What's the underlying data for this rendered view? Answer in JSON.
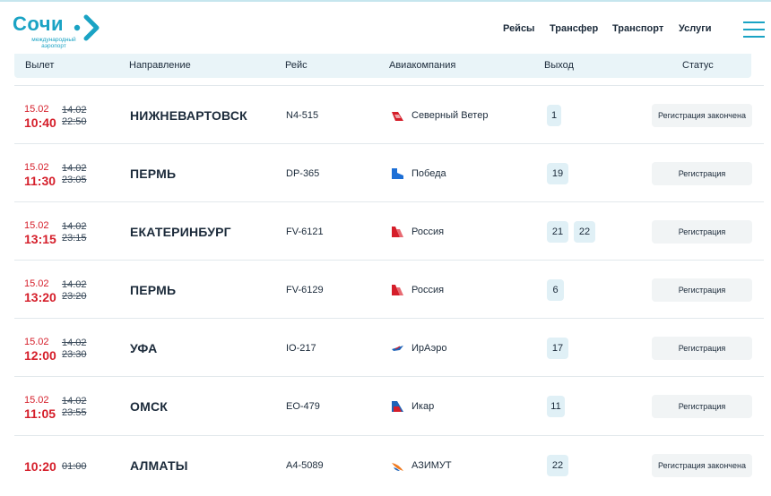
{
  "header": {
    "logo_text": "Сочи",
    "logo_sub": "международный аэропорт",
    "nav": [
      "Рейсы",
      "Трансфер",
      "Транспорт",
      "Услуги"
    ]
  },
  "columns": {
    "departure": "Вылет",
    "destination": "Направление",
    "flight": "Рейс",
    "airline": "Авиакомпания",
    "gate": "Выход",
    "status": "Статус"
  },
  "colors": {
    "accent": "#1aa3c4",
    "actual_time": "#d51e2a",
    "gate_bg": "#e0f0f6",
    "status_bg": "#f1f4f5"
  },
  "flights": [
    {
      "date": "15.02",
      "time": "10:40",
      "sched_date": "14.02",
      "sched_time": "22:50",
      "destination": "НИЖНЕВАРТОВСК",
      "flight": "N4-515",
      "airline": "Северный Ветер",
      "airline_icon": "nordwind-icon",
      "gates": [
        "1"
      ],
      "status": "Регистрация закончена"
    },
    {
      "date": "15.02",
      "time": "11:30",
      "sched_date": "14.02",
      "sched_time": "23:05",
      "destination": "ПЕРМЬ",
      "flight": "DP-365",
      "airline": "Победа",
      "airline_icon": "pobeda-icon",
      "gates": [
        "19"
      ],
      "status": "Регистрация"
    },
    {
      "date": "15.02",
      "time": "13:15",
      "sched_date": "14.02",
      "sched_time": "23:15",
      "destination": "ЕКАТЕРИНБУРГ",
      "flight": "FV-6121",
      "airline": "Россия",
      "airline_icon": "rossiya-icon",
      "gates": [
        "21",
        "22"
      ],
      "status": "Регистрация"
    },
    {
      "date": "15.02",
      "time": "13:20",
      "sched_date": "14.02",
      "sched_time": "23:20",
      "destination": "ПЕРМЬ",
      "flight": "FV-6129",
      "airline": "Россия",
      "airline_icon": "rossiya-icon",
      "gates": [
        "6"
      ],
      "status": "Регистрация"
    },
    {
      "date": "15.02",
      "time": "12:00",
      "sched_date": "14.02",
      "sched_time": "23:30",
      "destination": "УФА",
      "flight": "IO-217",
      "airline": "ИрАэро",
      "airline_icon": "iraero-icon",
      "gates": [
        "17"
      ],
      "status": "Регистрация"
    },
    {
      "date": "15.02",
      "time": "11:05",
      "sched_date": "14.02",
      "sched_time": "23:55",
      "destination": "ОМСК",
      "flight": "EO-479",
      "airline": "Икар",
      "airline_icon": "ikar-icon",
      "gates": [
        "11"
      ],
      "status": "Регистрация"
    },
    {
      "date": "",
      "time": "10:20",
      "sched_date": "",
      "sched_time": "01:00",
      "destination": "АЛМАТЫ",
      "flight": "A4-5089",
      "airline": "АЗИМУТ",
      "airline_icon": "azimut-icon",
      "gates": [
        "22"
      ],
      "status": "Регистрация закончена"
    }
  ]
}
